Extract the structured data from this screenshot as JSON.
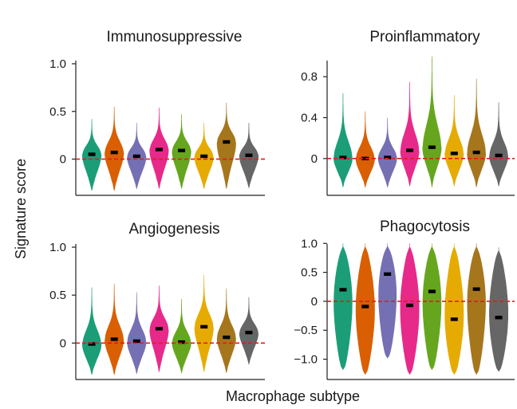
{
  "ylabel": "Signature score",
  "xlabel": "Macrophage subtype",
  "subtype_colors": [
    "#1b9e77",
    "#d95f02",
    "#7570b3",
    "#e7298a",
    "#66a61e",
    "#e6ab02",
    "#a6761d",
    "#666666"
  ],
  "reference_line": {
    "value": 0,
    "color": "#e41a1c",
    "style": "dashed"
  },
  "chart_data": [
    {
      "type": "violin",
      "title": "Immunosuppressive",
      "ylim": [
        -0.38,
        1.1
      ],
      "yticks": [
        0,
        0.5,
        1.0
      ],
      "ytick_labels": [
        "0",
        "0.5",
        "1.0"
      ],
      "series": [
        {
          "median": 0.05,
          "min": -0.33,
          "max": 0.42
        },
        {
          "median": 0.07,
          "min": -0.33,
          "max": 0.55
        },
        {
          "median": 0.03,
          "min": -0.31,
          "max": 0.38
        },
        {
          "median": 0.1,
          "min": -0.31,
          "max": 0.54
        },
        {
          "median": 0.09,
          "min": -0.31,
          "max": 0.47
        },
        {
          "median": 0.03,
          "min": -0.31,
          "max": 0.38
        },
        {
          "median": 0.18,
          "min": -0.31,
          "max": 0.59
        },
        {
          "median": 0.04,
          "min": -0.3,
          "max": 0.38
        }
      ]
    },
    {
      "type": "violin",
      "title": "Proinflammatory",
      "ylim": [
        -0.36,
        1.02
      ],
      "yticks": [
        0,
        0.4,
        0.8
      ],
      "ytick_labels": [
        "0",
        "0.4",
        "0.8"
      ],
      "series": [
        {
          "median": 0.01,
          "min": -0.28,
          "max": 0.64
        },
        {
          "median": 0.0,
          "min": -0.28,
          "max": 0.46
        },
        {
          "median": 0.01,
          "min": -0.28,
          "max": 0.4
        },
        {
          "median": 0.08,
          "min": -0.27,
          "max": 0.75
        },
        {
          "median": 0.11,
          "min": -0.28,
          "max": 1.0
        },
        {
          "median": 0.05,
          "min": -0.27,
          "max": 0.62
        },
        {
          "median": 0.06,
          "min": -0.28,
          "max": 0.78
        },
        {
          "median": 0.03,
          "min": -0.27,
          "max": 0.55
        }
      ]
    },
    {
      "type": "violin",
      "title": "Angiogenesis",
      "ylim": [
        -0.38,
        1.1
      ],
      "yticks": [
        0,
        0.5,
        1.0
      ],
      "ytick_labels": [
        "0",
        "0.5",
        "1.0"
      ],
      "series": [
        {
          "median": -0.01,
          "min": -0.33,
          "max": 0.58
        },
        {
          "median": 0.04,
          "min": -0.33,
          "max": 0.62
        },
        {
          "median": 0.02,
          "min": -0.32,
          "max": 0.53
        },
        {
          "median": 0.15,
          "min": -0.3,
          "max": 0.6
        },
        {
          "median": 0.01,
          "min": -0.31,
          "max": 0.46
        },
        {
          "median": 0.17,
          "min": -0.3,
          "max": 0.71
        },
        {
          "median": 0.06,
          "min": -0.31,
          "max": 0.57
        },
        {
          "median": 0.11,
          "min": -0.22,
          "max": 0.48
        }
      ]
    },
    {
      "type": "violin",
      "title": "Phagocytosis",
      "ylim": [
        -1.35,
        1.1
      ],
      "yticks": [
        -1.0,
        -0.5,
        0,
        0.5,
        1.0
      ],
      "ytick_labels": [
        "−1.0",
        "−0.5",
        "0",
        "0.5",
        "1.0"
      ],
      "series": [
        {
          "median": 0.2,
          "min": -1.18,
          "max": 1.0
        },
        {
          "median": -0.09,
          "min": -1.26,
          "max": 1.0
        },
        {
          "median": 0.47,
          "min": -0.98,
          "max": 1.0
        },
        {
          "median": -0.07,
          "min": -1.26,
          "max": 1.0
        },
        {
          "median": 0.17,
          "min": -1.18,
          "max": 1.0
        },
        {
          "median": -0.31,
          "min": -1.26,
          "max": 1.0
        },
        {
          "median": 0.21,
          "min": -1.26,
          "max": 1.0
        },
        {
          "median": -0.28,
          "min": -1.21,
          "max": 0.93
        }
      ]
    }
  ]
}
